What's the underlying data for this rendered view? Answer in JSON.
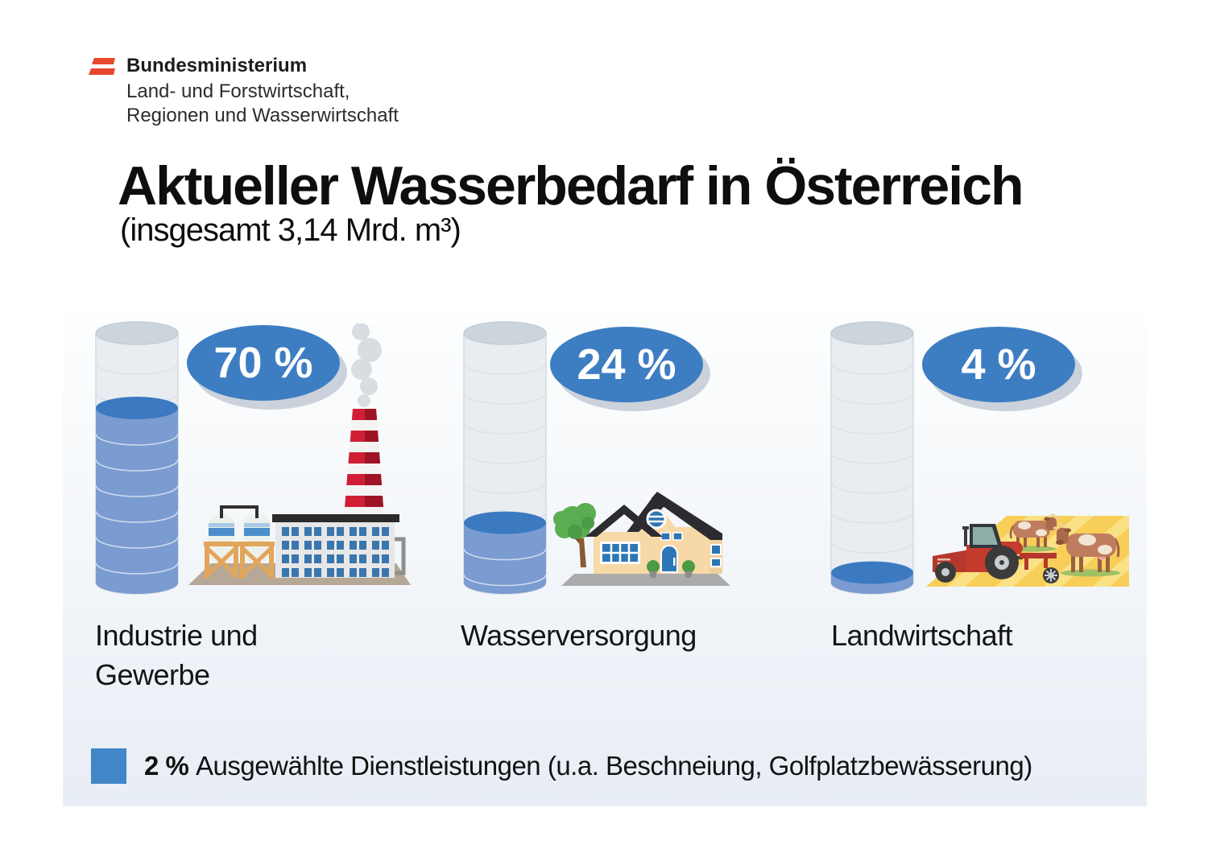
{
  "ministry": {
    "name": "Bundesministerium",
    "dept_line1": "Land- und Forstwirtschaft,",
    "dept_line2": "Regionen und Wasserwirtschaft"
  },
  "header": {
    "title": "Aktueller Wasserbedarf in Österreich",
    "subtitle": "(insgesamt 3,14 Mrd. m³)"
  },
  "columns": [
    {
      "badge": "70 %",
      "percent": 70,
      "label": "Industrie und Gewerbe",
      "icon": "factory-icon"
    },
    {
      "badge": "24 %",
      "percent": 24,
      "label": "Wasserversorgung",
      "icon": "house-icon"
    },
    {
      "badge": "4 %",
      "percent": 4,
      "label": "Landwirtschaft",
      "icon": "tractor-cows-icon"
    }
  ],
  "legend": {
    "badge": "2 %",
    "text": "Ausgewählte Dienstleistungen (u.a. Beschneiung, Golfplatzbewässerung)"
  },
  "chart_data": {
    "type": "bar",
    "title": "Aktueller Wasserbedarf in Österreich",
    "subtitle": "(insgesamt 3,14 Mrd. m³)",
    "total": "3,14 Mrd. m³",
    "categories": [
      "Industrie und Gewerbe",
      "Wasserversorgung",
      "Landwirtschaft",
      "Ausgewählte Dienstleistungen (u.a. Beschneiung, Golfplatzbewässerung)"
    ],
    "values": [
      70,
      24,
      4,
      2
    ],
    "unit": "%",
    "ylim": [
      0,
      100
    ],
    "grid": false,
    "legend_position": "bottom"
  },
  "colors": {
    "flag_red": "#e8472e",
    "badge_blue": "#3d7ec2",
    "water_body": "#7b9cd1",
    "water_surface": "#3b7ac0",
    "cylinder_empty": "#e9edf1",
    "legend_square": "#4186c6",
    "panel_bottom": "#e8edf5"
  }
}
